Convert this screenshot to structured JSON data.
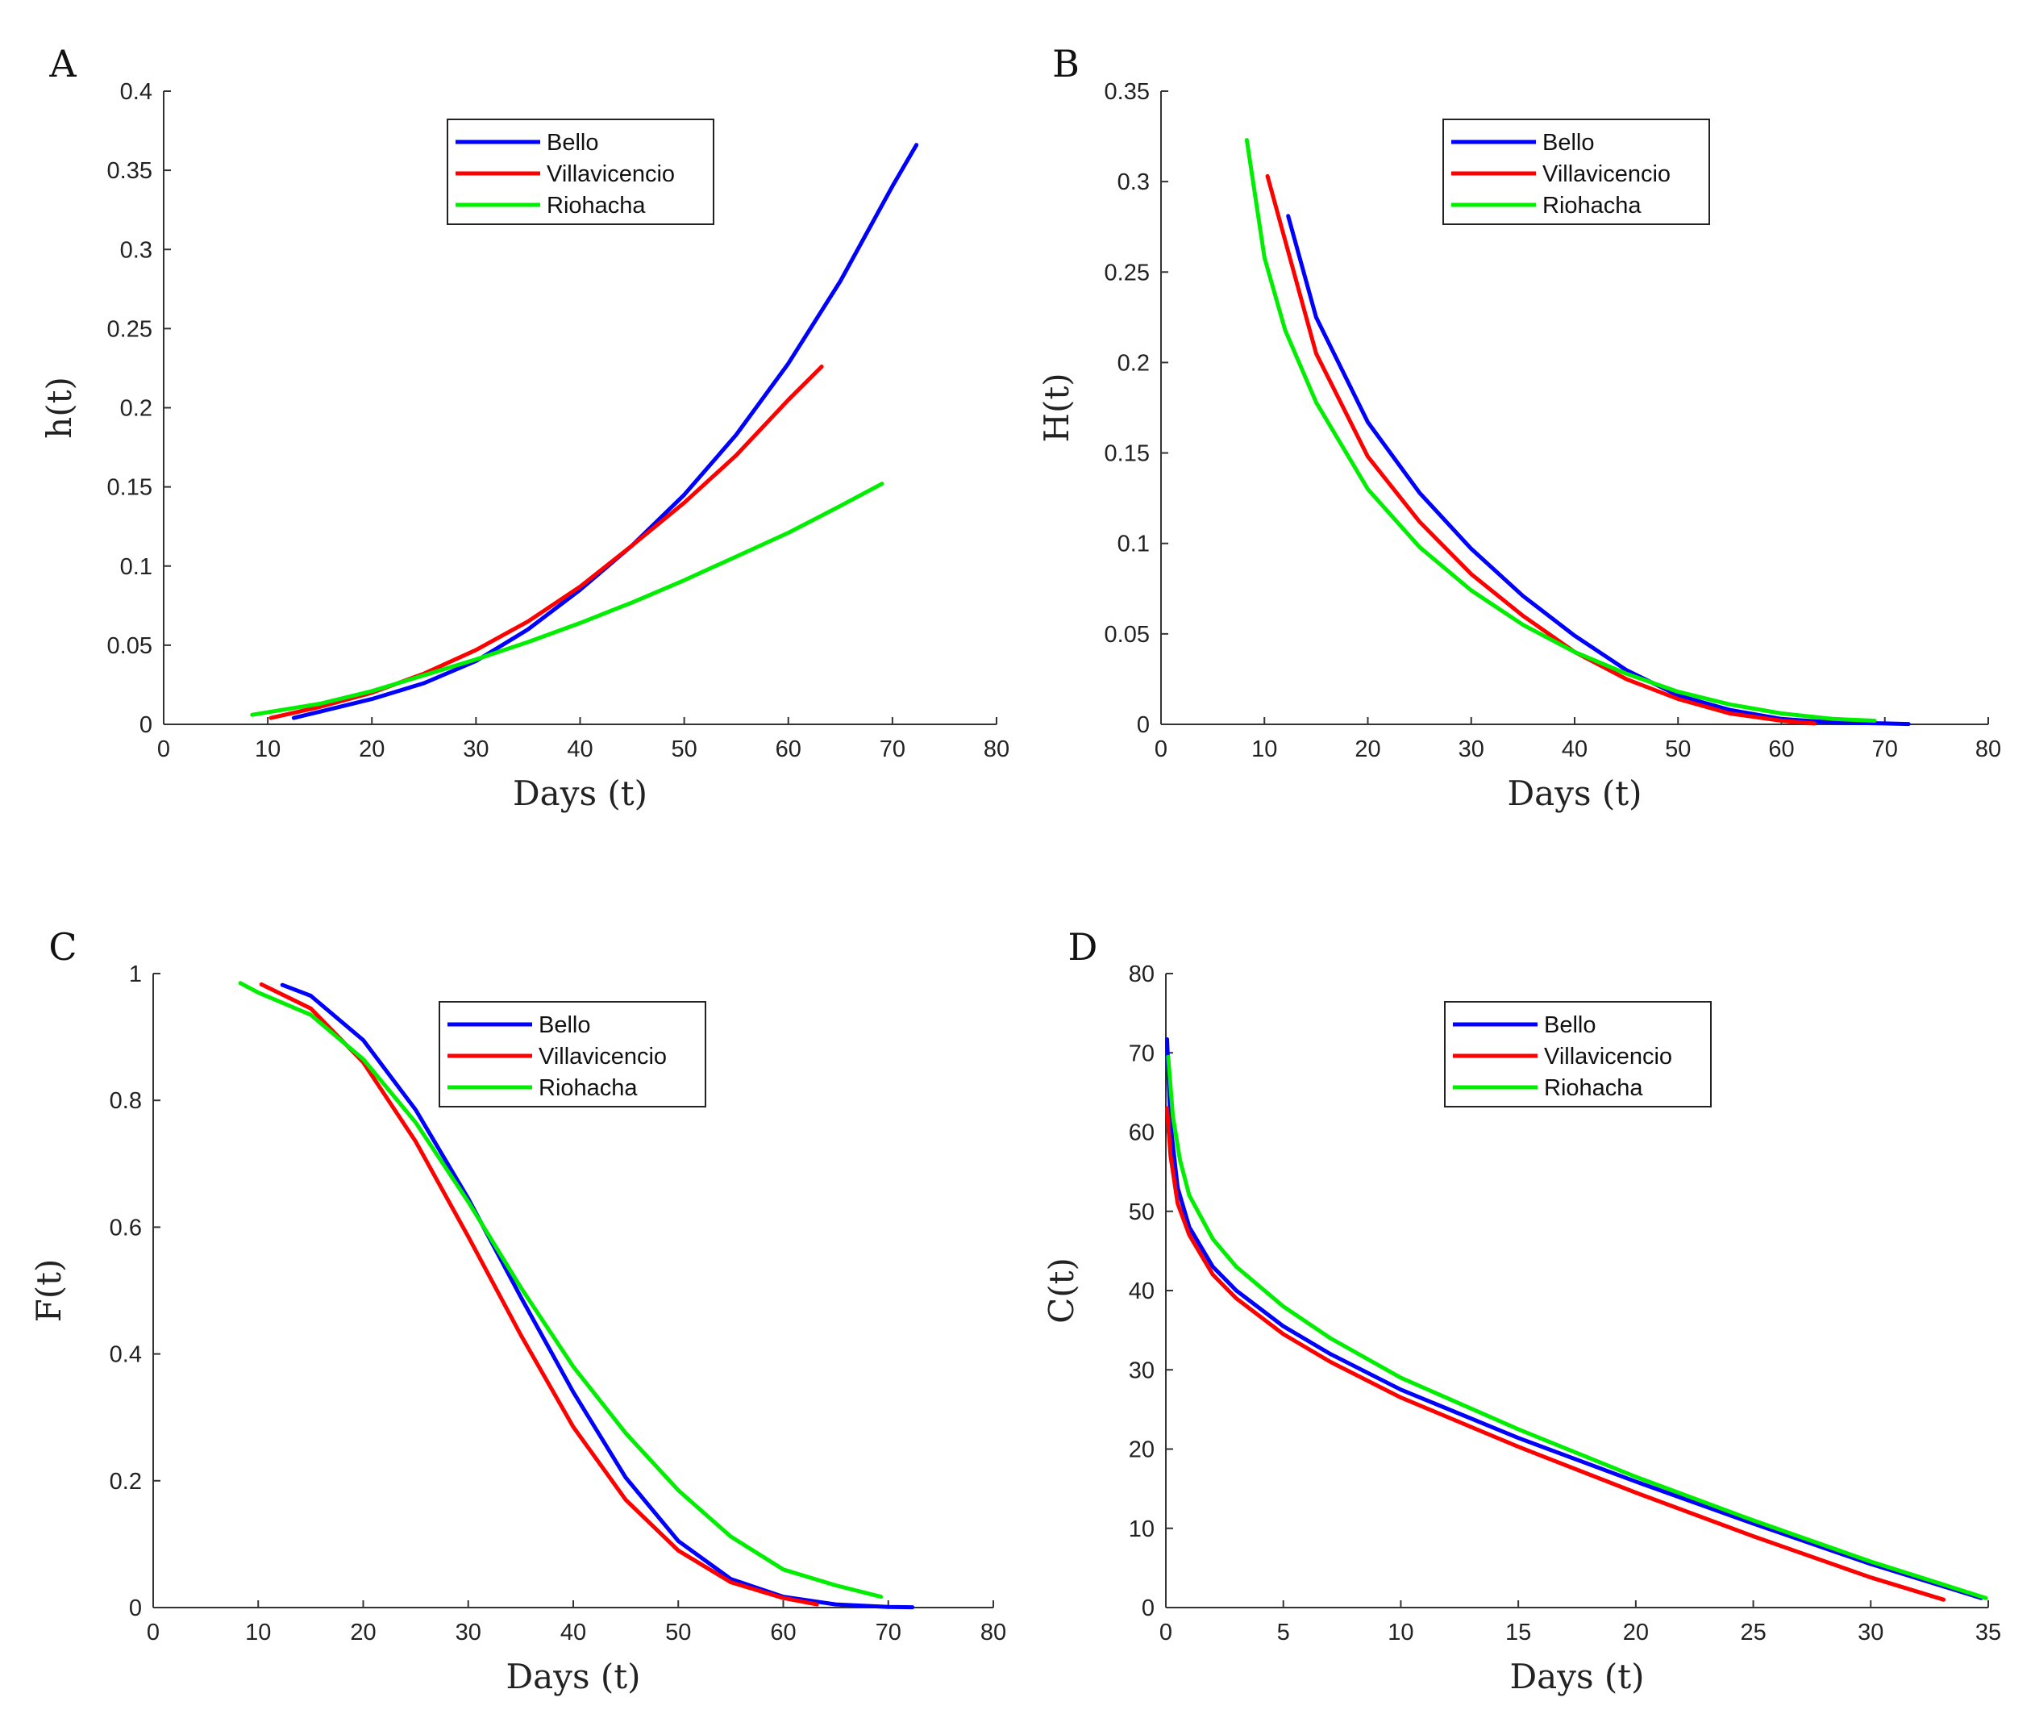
{
  "chart_data": [
    {
      "panel": "A",
      "type": "line",
      "xlabel": "Days (t)",
      "ylabel": "h(t)",
      "xlim": [
        0,
        80
      ],
      "ylim": [
        0,
        0.4
      ],
      "xticks": [
        0,
        10,
        20,
        30,
        40,
        50,
        60,
        70,
        80
      ],
      "yticks": [
        0,
        0.05,
        0.1,
        0.15,
        0.2,
        0.25,
        0.3,
        0.35,
        0.4
      ],
      "legend_position": "top-center",
      "series": [
        {
          "name": "Bello",
          "color": "#0000ff",
          "x": [
            12.5,
            15,
            20,
            25,
            30,
            35,
            40,
            45,
            50,
            55,
            60,
            65,
            70,
            72.3
          ],
          "y": [
            0.004,
            0.008,
            0.016,
            0.026,
            0.04,
            0.06,
            0.085,
            0.113,
            0.145,
            0.183,
            0.228,
            0.28,
            0.34,
            0.366
          ]
        },
        {
          "name": "Villavicencio",
          "color": "#ff0000",
          "x": [
            10.3,
            15,
            20,
            25,
            30,
            35,
            40,
            45,
            50,
            55,
            60,
            63.2
          ],
          "y": [
            0.004,
            0.011,
            0.02,
            0.032,
            0.047,
            0.065,
            0.087,
            0.113,
            0.14,
            0.17,
            0.205,
            0.226
          ]
        },
        {
          "name": "Riohacha",
          "color": "#00ee00",
          "x": [
            8.5,
            15,
            20,
            25,
            30,
            35,
            40,
            45,
            50,
            55,
            60,
            65,
            69
          ],
          "y": [
            0.006,
            0.013,
            0.021,
            0.031,
            0.041,
            0.052,
            0.064,
            0.077,
            0.091,
            0.106,
            0.121,
            0.138,
            0.152
          ]
        }
      ]
    },
    {
      "panel": "B",
      "type": "line",
      "xlabel": "Days (t)",
      "ylabel": "H(t)",
      "xlim": [
        0,
        80
      ],
      "ylim": [
        0,
        0.35
      ],
      "xticks": [
        0,
        10,
        20,
        30,
        40,
        50,
        60,
        70,
        80
      ],
      "yticks": [
        0,
        0.05,
        0.1,
        0.15,
        0.2,
        0.25,
        0.3,
        0.35
      ],
      "legend_position": "top-center",
      "series": [
        {
          "name": "Bello",
          "color": "#0000ff",
          "x": [
            12.3,
            15,
            20,
            25,
            30,
            35,
            40,
            45,
            50,
            55,
            60,
            65,
            70,
            72.3
          ],
          "y": [
            0.281,
            0.225,
            0.167,
            0.128,
            0.097,
            0.071,
            0.049,
            0.03,
            0.016,
            0.008,
            0.003,
            0.001,
            0.0005,
            0.0002
          ]
        },
        {
          "name": "Villavicencio",
          "color": "#ff0000",
          "x": [
            10.3,
            15,
            20,
            25,
            30,
            35,
            40,
            45,
            50,
            55,
            60,
            63.2
          ],
          "y": [
            0.303,
            0.205,
            0.148,
            0.112,
            0.083,
            0.06,
            0.04,
            0.025,
            0.014,
            0.006,
            0.002,
            0.0005
          ]
        },
        {
          "name": "Riohacha",
          "color": "#00ee00",
          "x": [
            8.3,
            10,
            12,
            15,
            20,
            25,
            30,
            35,
            40,
            45,
            50,
            55,
            60,
            65,
            69
          ],
          "y": [
            0.323,
            0.258,
            0.218,
            0.178,
            0.13,
            0.098,
            0.074,
            0.055,
            0.04,
            0.028,
            0.018,
            0.011,
            0.006,
            0.003,
            0.002
          ]
        }
      ]
    },
    {
      "panel": "C",
      "type": "line",
      "xlabel": "Days (t)",
      "ylabel": "F(t)",
      "xlim": [
        0,
        80
      ],
      "ylim": [
        0,
        1
      ],
      "xticks": [
        0,
        10,
        20,
        30,
        40,
        50,
        60,
        70,
        80
      ],
      "yticks": [
        0,
        0.2,
        0.4,
        0.6,
        0.8,
        1
      ],
      "legend_position": "top-center",
      "series": [
        {
          "name": "Bello",
          "color": "#0000ff",
          "x": [
            12.3,
            15,
            20,
            25,
            30,
            35,
            40,
            45,
            50,
            55,
            60,
            65,
            70,
            72.3
          ],
          "y": [
            0.982,
            0.965,
            0.895,
            0.785,
            0.645,
            0.49,
            0.34,
            0.205,
            0.105,
            0.045,
            0.017,
            0.005,
            0.001,
            0.0005
          ]
        },
        {
          "name": "Villavicencio",
          "color": "#ff0000",
          "x": [
            10.3,
            15,
            20,
            25,
            30,
            35,
            40,
            45,
            50,
            55,
            60,
            63.2
          ],
          "y": [
            0.983,
            0.945,
            0.86,
            0.735,
            0.585,
            0.43,
            0.285,
            0.17,
            0.09,
            0.04,
            0.015,
            0.005
          ]
        },
        {
          "name": "Riohacha",
          "color": "#00ee00",
          "x": [
            8.3,
            10,
            15,
            20,
            25,
            30,
            35,
            40,
            45,
            50,
            55,
            60,
            65,
            69.3
          ],
          "y": [
            0.985,
            0.97,
            0.935,
            0.865,
            0.765,
            0.64,
            0.505,
            0.38,
            0.275,
            0.185,
            0.112,
            0.06,
            0.035,
            0.017
          ]
        }
      ]
    },
    {
      "panel": "D",
      "type": "line",
      "xlabel": "Days (t)",
      "ylabel": "C(t)",
      "xlim": [
        0,
        35
      ],
      "ylim": [
        0,
        80
      ],
      "xticks": [
        0,
        5,
        10,
        15,
        20,
        25,
        30,
        35
      ],
      "yticks": [
        0,
        10,
        20,
        30,
        40,
        50,
        60,
        70,
        80
      ],
      "legend_position": "top-center",
      "series": [
        {
          "name": "Bello",
          "color": "#0000ff",
          "x": [
            0.05,
            0.2,
            0.5,
            1,
            2,
            3,
            5,
            7,
            10,
            15,
            20,
            25,
            30,
            34.7
          ],
          "y": [
            71.7,
            61,
            53,
            48,
            43,
            40,
            35.5,
            32,
            27.5,
            21.4,
            15.9,
            10.6,
            5.5,
            1.2
          ]
        },
        {
          "name": "Villavicencio",
          "color": "#ff0000",
          "x": [
            0.05,
            0.2,
            0.5,
            1,
            2,
            3,
            5,
            7,
            10,
            15,
            20,
            25,
            30,
            33.1
          ],
          "y": [
            63,
            57,
            51,
            47,
            42,
            39,
            34.5,
            31,
            26.5,
            20.3,
            14.5,
            9.0,
            3.8,
            1.0
          ]
        },
        {
          "name": "Riohacha",
          "color": "#00ee00",
          "x": [
            0.1,
            0.3,
            0.6,
            1,
            2,
            3,
            5,
            7,
            10,
            15,
            20,
            25,
            30,
            34.9
          ],
          "y": [
            69.5,
            62,
            56.5,
            52,
            46.5,
            43,
            38,
            34,
            29,
            22.5,
            16.5,
            11.0,
            5.8,
            1.2
          ]
        }
      ]
    }
  ]
}
